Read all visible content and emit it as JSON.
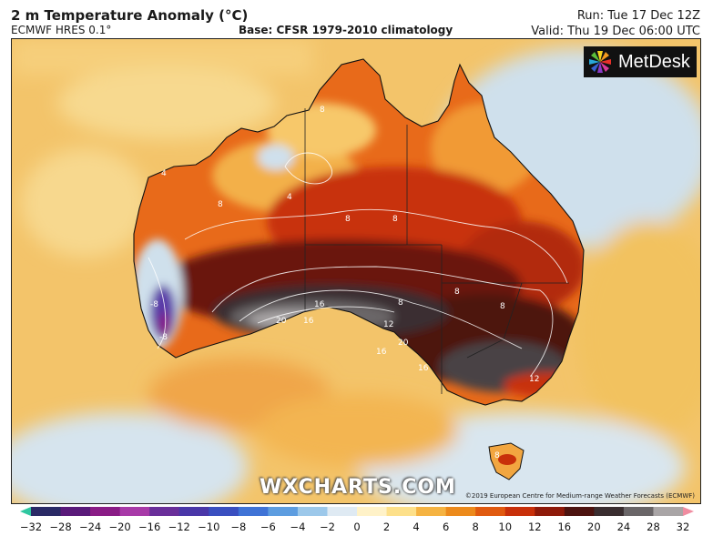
{
  "header": {
    "title": "2 m Temperature Anomaly (°C)",
    "model": "ECMWF HRES 0.1°",
    "base": "Base: CFSR 1979-2010 climatology",
    "run": "Run: Tue 17 Dec 12Z",
    "valid": "Valid: Thu 19 Dec 06:00 UTC"
  },
  "logo": {
    "text": "MetDesk",
    "icon": "metdesk-starburst-icon"
  },
  "watermark": "WXCHARTS.COM",
  "copyright": "©2019 European Centre for Medium-range Weather Forecasts (ECMWF)",
  "map": {
    "region": "Australia",
    "contour_labels": [
      "8",
      "8",
      "4",
      "8",
      "4",
      "8",
      "8",
      "8",
      "8",
      "-8",
      "-8",
      "16",
      "20",
      "16",
      "12",
      "16",
      "16",
      "20",
      "12",
      "8"
    ]
  },
  "colorbar": {
    "ticks": [
      "−32",
      "−28",
      "−24",
      "−20",
      "−16",
      "−12",
      "−10",
      "−8",
      "−6",
      "−4",
      "−2",
      "0",
      "2",
      "4",
      "6",
      "8",
      "10",
      "12",
      "16",
      "20",
      "24",
      "28",
      "32"
    ],
    "colors": [
      "#2fc7a0",
      "#2a2a66",
      "#5a1a7a",
      "#8a1c86",
      "#a83aa8",
      "#6a2f9a",
      "#4a37a8",
      "#3a4fc0",
      "#3f73d6",
      "#5d9de0",
      "#9cc8ea",
      "#dfeaf3",
      "#fff2c8",
      "#fde08a",
      "#f5b342",
      "#ec8a1c",
      "#e05a10",
      "#c8300a",
      "#8e1a0a",
      "#4d1410",
      "#3a2e30",
      "#6a6668",
      "#a9a5a6",
      "#f08ca0"
    ]
  }
}
